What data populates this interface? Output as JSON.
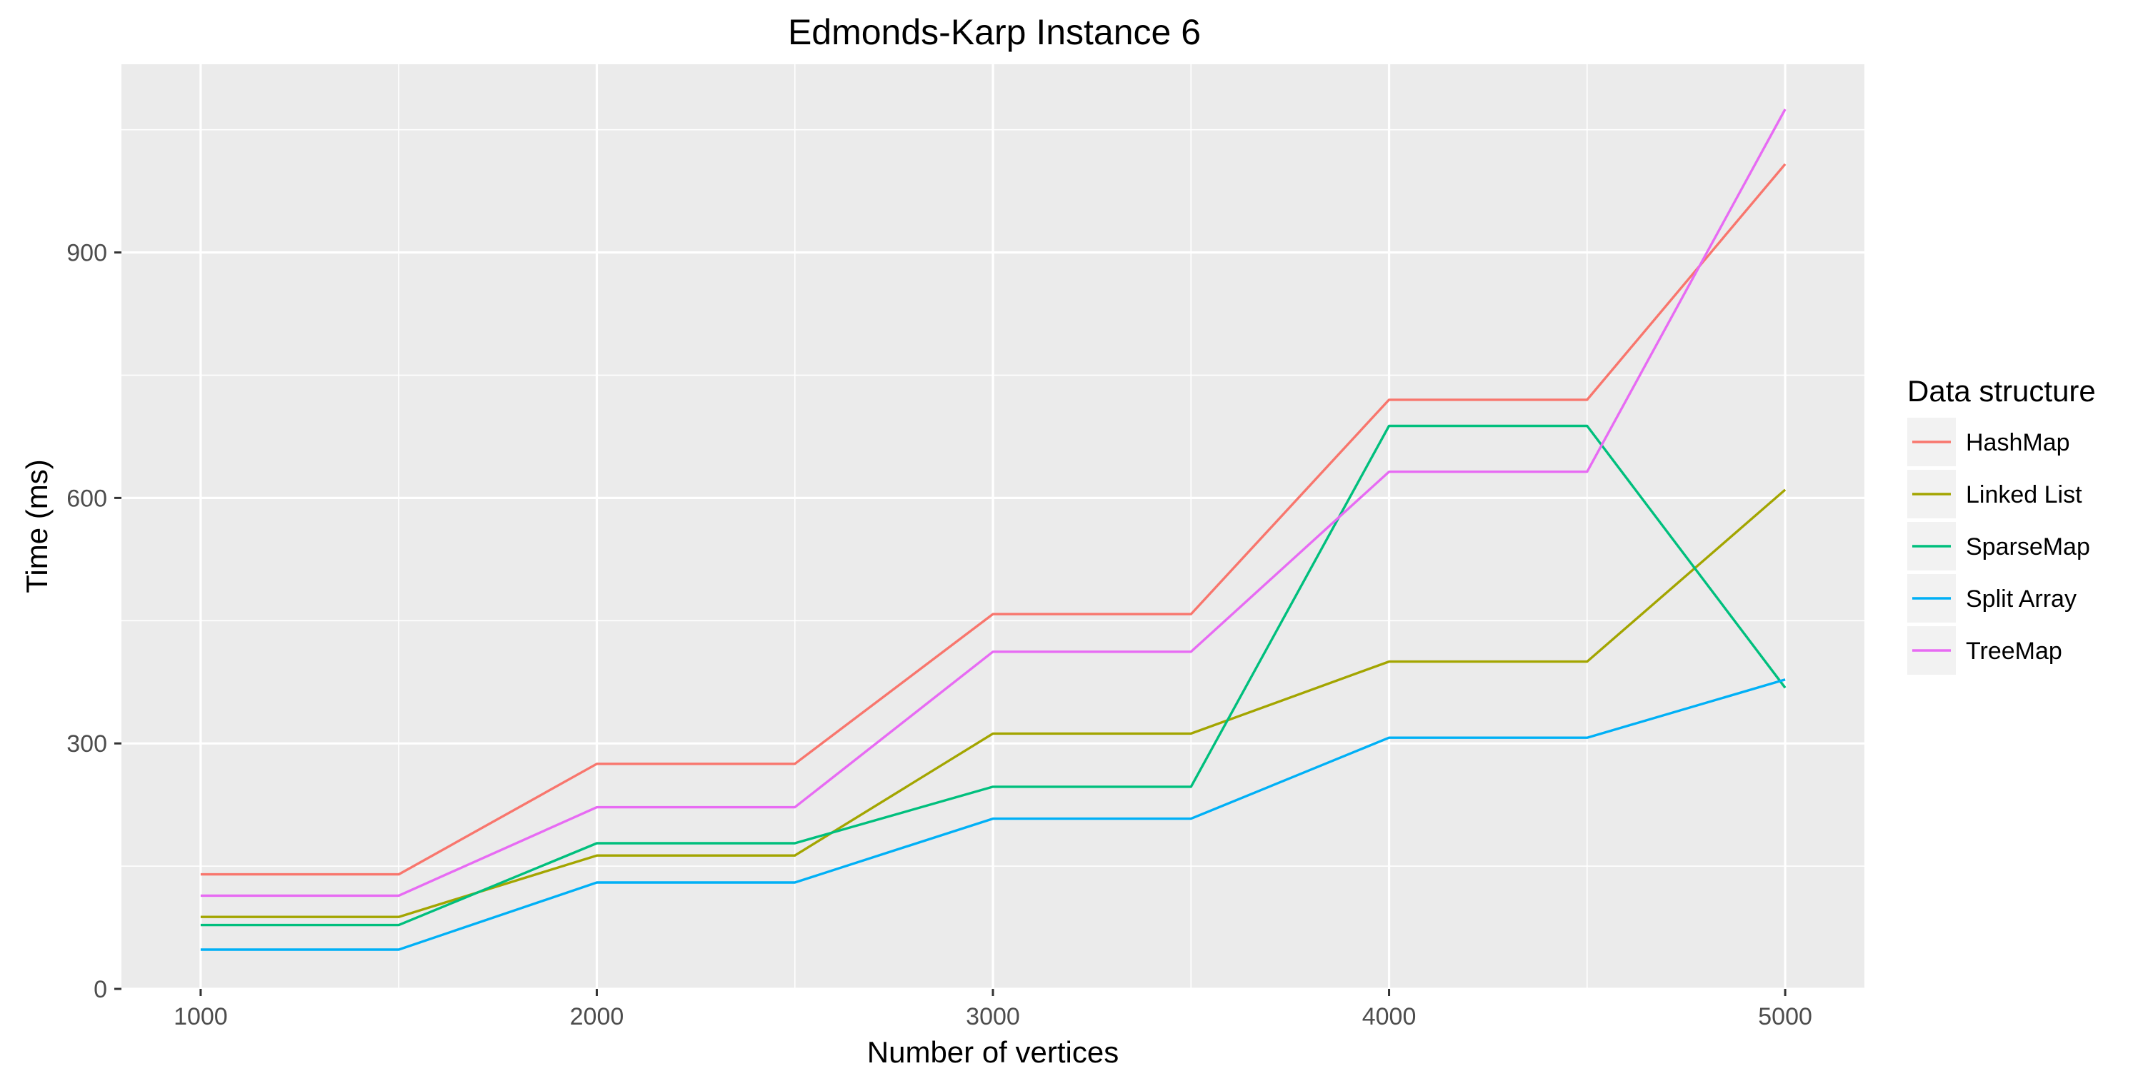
{
  "chart_data": {
    "type": "line",
    "title": "Edmonds-Karp Instance 6",
    "xlabel": "Number of vertices",
    "ylabel": "Time (ms)",
    "x": [
      1000,
      1500,
      2000,
      2500,
      3000,
      3500,
      4000,
      4500,
      5000
    ],
    "xlim": [
      800,
      5200
    ],
    "ylim": [
      0,
      1130
    ],
    "x_ticks": [
      1000,
      2000,
      3000,
      4000,
      5000
    ],
    "y_ticks": [
      0,
      300,
      600,
      900
    ],
    "grid": true,
    "legend": {
      "title": "Data structure",
      "position": "right"
    },
    "series": [
      {
        "name": "HashMap",
        "color": "#F8766D",
        "values": [
          140,
          140,
          275,
          275,
          458,
          458,
          720,
          720,
          1008
        ]
      },
      {
        "name": "Linked List",
        "color": "#A3A500",
        "values": [
          88,
          88,
          163,
          163,
          312,
          312,
          400,
          400,
          610
        ]
      },
      {
        "name": "SparseMap",
        "color": "#00BF7D",
        "values": [
          78,
          78,
          178,
          178,
          247,
          247,
          688,
          688,
          368
        ]
      },
      {
        "name": "Split Array",
        "color": "#00B0F6",
        "values": [
          48,
          48,
          130,
          130,
          208,
          208,
          307,
          307,
          378
        ]
      },
      {
        "name": "TreeMap",
        "color": "#E76BF3",
        "values": [
          114,
          114,
          222,
          222,
          412,
          412,
          632,
          632,
          1075
        ]
      }
    ]
  }
}
